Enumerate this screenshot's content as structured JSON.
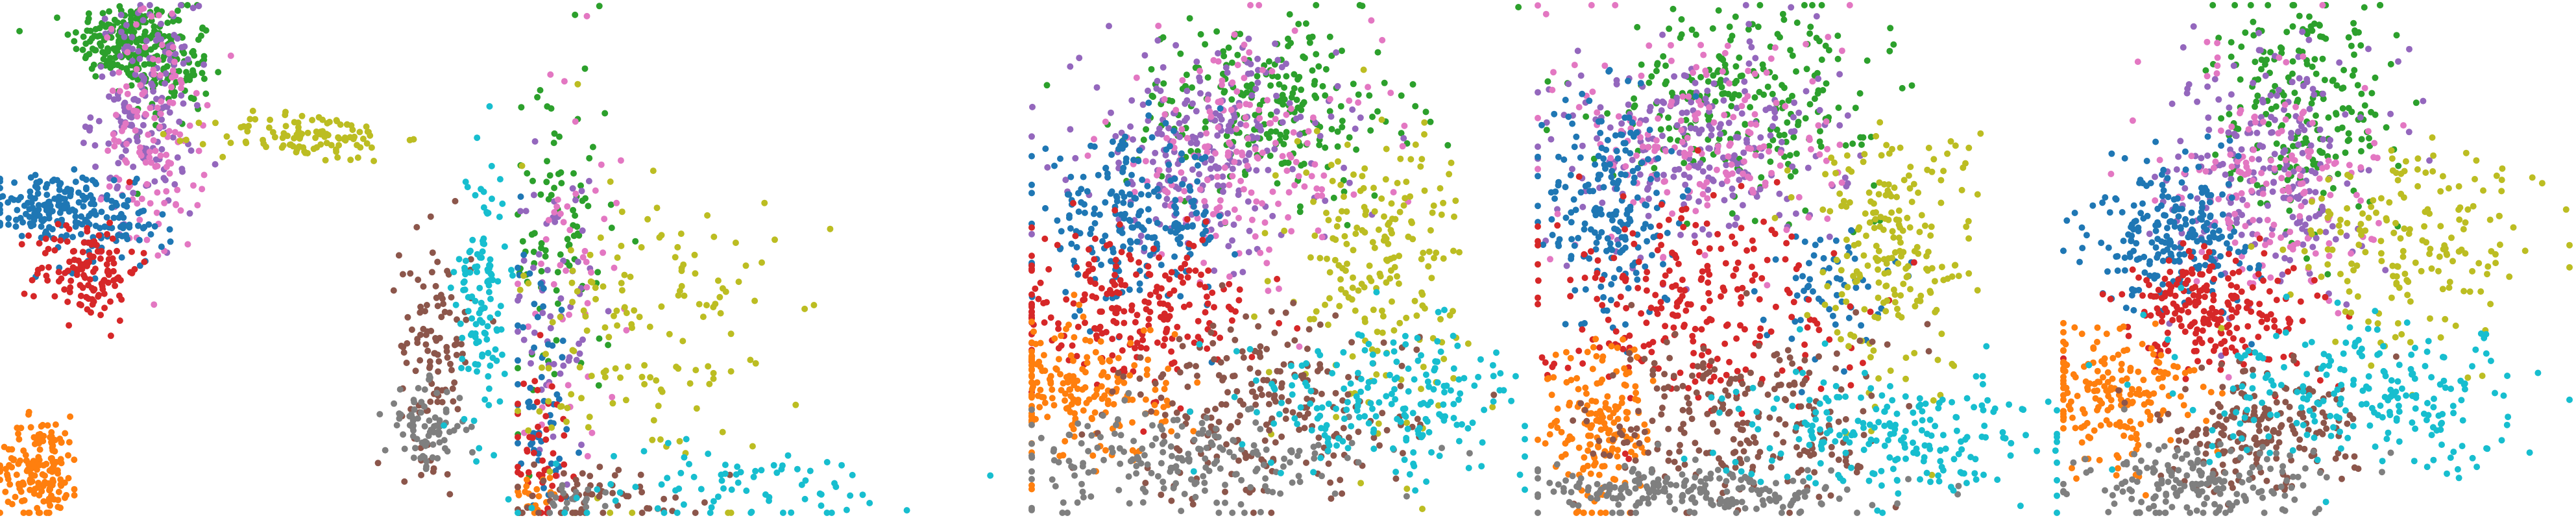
{
  "figure": {
    "description_visible_text": "",
    "point_radius_px": 5
  },
  "palette": {
    "blue": "#1f77b4",
    "orange": "#ff7f0e",
    "green": "#2ca02c",
    "red": "#d62728",
    "purple": "#9467bd",
    "brown": "#8c564b",
    "pink": "#e377c2",
    "gray": "#7f7f7f",
    "olive": "#bcbd22",
    "cyan": "#17becf"
  },
  "chart_data": [
    {
      "type": "scatter",
      "panel": 1,
      "title": "",
      "xlabel": "",
      "ylabel": "",
      "axes_visible": false,
      "grid": false,
      "legend": "none",
      "xlim": [
        0,
        1
      ],
      "ylim": [
        0,
        1
      ],
      "series": [
        {
          "color": "green",
          "blobs": [
            [
              0.24,
              0.93,
              0.05,
              0.04,
              170
            ],
            [
              0.33,
              0.88,
              0.04,
              0.06,
              120
            ]
          ]
        },
        {
          "color": "purple",
          "blobs": [
            [
              0.28,
              0.8,
              0.05,
              0.1,
              170
            ]
          ]
        },
        {
          "color": "pink",
          "blobs": [
            [
              0.3,
              0.74,
              0.05,
              0.12,
              130
            ]
          ]
        },
        {
          "color": "blue",
          "blobs": [
            [
              0.1,
              0.6,
              0.06,
              0.035,
              150
            ],
            [
              0.22,
              0.56,
              0.05,
              0.04,
              70
            ]
          ]
        },
        {
          "color": "red",
          "blobs": [
            [
              0.17,
              0.48,
              0.05,
              0.05,
              130
            ]
          ]
        },
        {
          "color": "olive",
          "blobs": [
            [
              0.6,
              0.74,
              0.09,
              0.025,
              110
            ]
          ]
        },
        {
          "color": "orange",
          "blobs": [
            [
              0.08,
              0.09,
              0.04,
              0.05,
              160
            ]
          ]
        },
        {
          "color": "brown",
          "blobs": [
            [
              0.85,
              0.33,
              0.035,
              0.11,
              110
            ]
          ]
        },
        {
          "color": "gray",
          "blobs": [
            [
              0.83,
              0.17,
              0.04,
              0.04,
              80
            ]
          ]
        },
        {
          "color": "cyan",
          "blobs": [
            [
              0.94,
              0.43,
              0.025,
              0.14,
              120
            ]
          ]
        }
      ]
    },
    {
      "type": "scatter",
      "panel": 2,
      "title": "",
      "xlabel": "",
      "ylabel": "",
      "axes_visible": false,
      "grid": false,
      "legend": "none",
      "xlim": [
        0,
        1
      ],
      "ylim": [
        0,
        1
      ],
      "series": [
        {
          "color": "green",
          "blobs": [
            [
              0.08,
              0.55,
              0.05,
              0.18,
              90
            ]
          ]
        },
        {
          "color": "purple",
          "blobs": [
            [
              0.07,
              0.4,
              0.04,
              0.14,
              60
            ]
          ]
        },
        {
          "color": "pink",
          "blobs": [
            [
              0.1,
              0.5,
              0.05,
              0.2,
              50
            ]
          ]
        },
        {
          "color": "blue",
          "blobs": [
            [
              0.04,
              0.25,
              0.03,
              0.15,
              60
            ]
          ]
        },
        {
          "color": "red",
          "blobs": [
            [
              0.04,
              0.12,
              0.03,
              0.08,
              50
            ]
          ]
        },
        {
          "color": "olive",
          "blobs": [
            [
              0.25,
              0.35,
              0.12,
              0.18,
              150
            ]
          ]
        },
        {
          "color": "orange",
          "blobs": [
            [
              0.03,
              0.03,
              0.02,
              0.02,
              20
            ]
          ]
        },
        {
          "color": "brown",
          "blobs": [
            [
              0.16,
              0.04,
              0.1,
              0.03,
              60
            ]
          ]
        },
        {
          "color": "gray",
          "blobs": [
            [
              0.1,
              0.02,
              0.06,
              0.02,
              20
            ]
          ]
        },
        {
          "color": "cyan",
          "blobs": [
            [
              0.4,
              0.05,
              0.18,
              0.04,
              80
            ]
          ]
        }
      ]
    },
    {
      "type": "scatter",
      "panel": 3,
      "title": "",
      "xlabel": "",
      "ylabel": "",
      "axes_visible": false,
      "grid": false,
      "legend": "none",
      "xlim": [
        0,
        1
      ],
      "ylim": [
        0,
        1
      ],
      "series": [
        {
          "color": "green",
          "blobs": [
            [
              0.48,
              0.8,
              0.14,
              0.09,
              240
            ]
          ]
        },
        {
          "color": "purple",
          "blobs": [
            [
              0.36,
              0.72,
              0.13,
              0.1,
              240
            ]
          ]
        },
        {
          "color": "pink",
          "blobs": [
            [
              0.42,
              0.7,
              0.14,
              0.12,
              170
            ]
          ]
        },
        {
          "color": "blue",
          "blobs": [
            [
              0.2,
              0.57,
              0.1,
              0.08,
              230
            ]
          ]
        },
        {
          "color": "red",
          "blobs": [
            [
              0.2,
              0.4,
              0.13,
              0.07,
              230
            ]
          ]
        },
        {
          "color": "olive",
          "blobs": [
            [
              0.7,
              0.5,
              0.09,
              0.14,
              200
            ]
          ]
        },
        {
          "color": "orange",
          "blobs": [
            [
              0.1,
              0.24,
              0.09,
              0.07,
              200
            ]
          ]
        },
        {
          "color": "brown",
          "blobs": [
            [
              0.48,
              0.2,
              0.15,
              0.09,
              240
            ]
          ]
        },
        {
          "color": "gray",
          "blobs": [
            [
              0.3,
              0.1,
              0.18,
              0.05,
              200
            ]
          ]
        },
        {
          "color": "cyan",
          "blobs": [
            [
              0.72,
              0.22,
              0.15,
              0.07,
              200
            ]
          ]
        }
      ]
    },
    {
      "type": "scatter",
      "panel": 4,
      "title": "",
      "xlabel": "",
      "ylabel": "",
      "axes_visible": false,
      "grid": false,
      "legend": "none",
      "xlim": [
        0,
        1
      ],
      "ylim": [
        0,
        1
      ],
      "series": [
        {
          "color": "green",
          "blobs": [
            [
              0.4,
              0.82,
              0.13,
              0.09,
              240
            ]
          ]
        },
        {
          "color": "purple",
          "blobs": [
            [
              0.3,
              0.72,
              0.14,
              0.1,
              230
            ]
          ]
        },
        {
          "color": "pink",
          "blobs": [
            [
              0.34,
              0.74,
              0.13,
              0.12,
              170
            ]
          ]
        },
        {
          "color": "blue",
          "blobs": [
            [
              0.14,
              0.6,
              0.06,
              0.12,
              200
            ],
            [
              0.55,
              0.45,
              0.06,
              0.06,
              60
            ]
          ]
        },
        {
          "color": "red",
          "blobs": [
            [
              0.28,
              0.42,
              0.15,
              0.1,
              250
            ]
          ]
        },
        {
          "color": "olive",
          "blobs": [
            [
              0.68,
              0.52,
              0.08,
              0.13,
              210
            ]
          ]
        },
        {
          "color": "orange",
          "blobs": [
            [
              0.12,
              0.16,
              0.05,
              0.09,
              170
            ]
          ]
        },
        {
          "color": "brown",
          "blobs": [
            [
              0.4,
              0.18,
              0.15,
              0.09,
              240
            ]
          ]
        },
        {
          "color": "gray",
          "blobs": [
            [
              0.3,
              0.04,
              0.16,
              0.025,
              200
            ]
          ]
        },
        {
          "color": "cyan",
          "blobs": [
            [
              0.68,
              0.16,
              0.15,
              0.06,
              220
            ]
          ]
        }
      ]
    },
    {
      "type": "scatter",
      "panel": 5,
      "title": "",
      "xlabel": "",
      "ylabel": "",
      "axes_visible": false,
      "grid": false,
      "legend": "none",
      "xlim": [
        0,
        1
      ],
      "ylim": [
        0,
        1
      ],
      "series": [
        {
          "color": "green",
          "blobs": [
            [
              0.48,
              0.78,
              0.09,
              0.12,
              220
            ]
          ]
        },
        {
          "color": "purple",
          "blobs": [
            [
              0.4,
              0.68,
              0.1,
              0.12,
              220
            ]
          ]
        },
        {
          "color": "pink",
          "blobs": [
            [
              0.42,
              0.66,
              0.1,
              0.12,
              160
            ]
          ]
        },
        {
          "color": "blue",
          "blobs": [
            [
              0.22,
              0.55,
              0.08,
              0.07,
              220
            ]
          ]
        },
        {
          "color": "red",
          "blobs": [
            [
              0.3,
              0.4,
              0.1,
              0.06,
              220
            ]
          ]
        },
        {
          "color": "olive",
          "blobs": [
            [
              0.7,
              0.52,
              0.12,
              0.1,
              180
            ]
          ]
        },
        {
          "color": "orange",
          "blobs": [
            [
              0.1,
              0.24,
              0.08,
              0.07,
              190
            ]
          ]
        },
        {
          "color": "brown",
          "blobs": [
            [
              0.38,
              0.16,
              0.1,
              0.06,
              200
            ]
          ]
        },
        {
          "color": "gray",
          "blobs": [
            [
              0.26,
              0.05,
              0.12,
              0.04,
              180
            ]
          ]
        },
        {
          "color": "cyan",
          "blobs": [
            [
              0.62,
              0.22,
              0.18,
              0.07,
              230
            ]
          ]
        }
      ]
    }
  ]
}
